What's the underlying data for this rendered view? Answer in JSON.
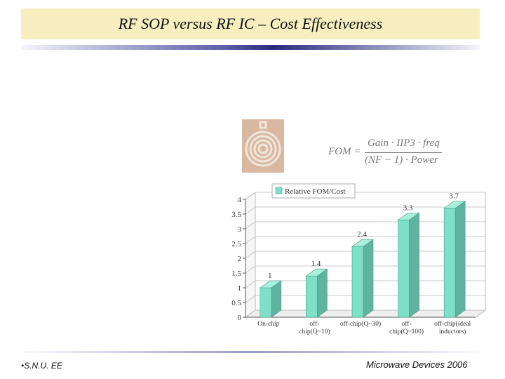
{
  "slide": {
    "title": "RF SOP versus RF IC – Cost Effectiveness",
    "footer_left": "•S.N.U. EE",
    "footer_right": "Microwave Devices 2006"
  },
  "formula": {
    "lhs": "FOM =",
    "numerator": "Gain · IIP3 · freq",
    "denominator": "(NF − 1) · Power"
  },
  "chart_data": {
    "type": "bar",
    "categories": [
      "On-chip",
      "off-chip(Q~10)",
      "off-chip(Q~30)",
      "off-chip(Q~100)",
      "off-chip(ideal inductors)"
    ],
    "category_lines": [
      [
        "On-chip"
      ],
      [
        "off-",
        "chip(Q~10)"
      ],
      [
        "off-chip(Q~30)"
      ],
      [
        "off-",
        "chip(Q~100)"
      ],
      [
        "off-chip(ideal",
        "inductors)"
      ]
    ],
    "series": [
      {
        "name": "Relative FOM/Cost",
        "values": [
          1,
          1.4,
          2.4,
          3.3,
          3.7
        ]
      }
    ],
    "data_labels": [
      "1",
      "1.4",
      "2.4",
      "3.3",
      "3.7"
    ],
    "yticks": [
      "0",
      "0.5",
      "1",
      "1.5",
      "2",
      "2.5",
      "3",
      "3.5",
      "4"
    ],
    "ylim": [
      0,
      4
    ],
    "grid": true,
    "legend_position": "top-left",
    "colors": {
      "bar_front": "#7fe0c8",
      "bar_side": "#5fb4a0",
      "bar_top": "#a8f0dc",
      "grid": "#c8c8c8"
    }
  }
}
